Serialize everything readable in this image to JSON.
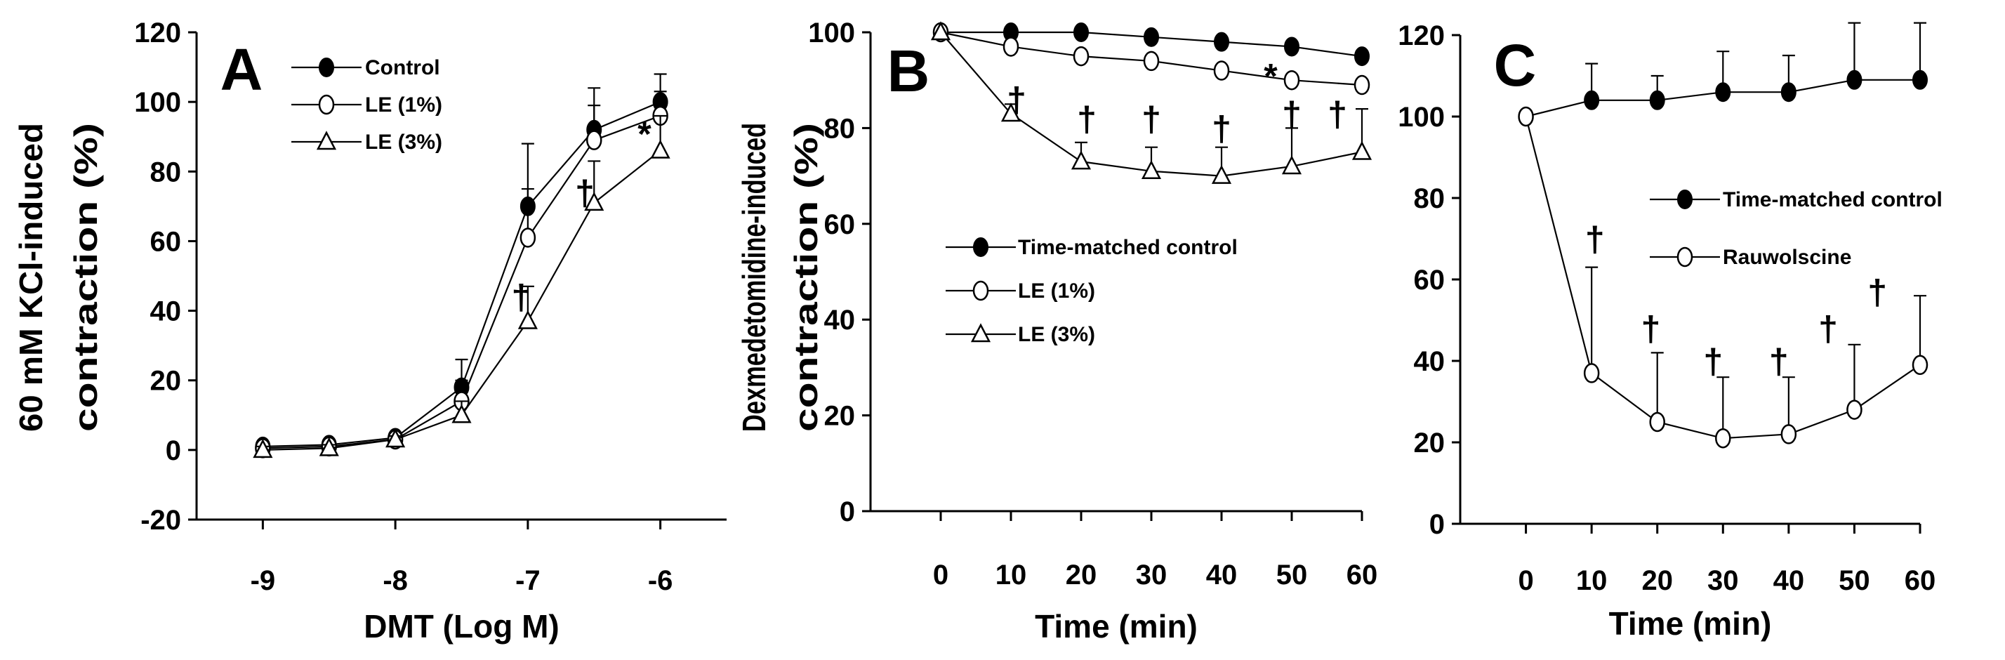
{
  "chart_data": [
    {
      "panel": "A",
      "type": "line",
      "ylabel": [
        "60 mM KCl-induced",
        "contraction (%)"
      ],
      "xlabel": "DMT (Log M)",
      "x": [
        -9,
        -8.5,
        -8,
        -7.5,
        -7,
        -6.5,
        -6
      ],
      "xticks": [
        -9,
        -8,
        -7,
        -6
      ],
      "xlim": [
        -9.5,
        -5.5
      ],
      "ylim": [
        -20,
        120
      ],
      "yticks": [
        -20,
        0,
        20,
        40,
        60,
        80,
        100,
        120
      ],
      "series": [
        {
          "name": "Control",
          "marker": "filled-circle",
          "values": [
            1,
            1.5,
            3.5,
            18,
            70,
            92,
            100
          ],
          "errors": [
            1,
            1,
            1,
            8,
            18,
            12,
            8
          ]
        },
        {
          "name": "LE (1%)",
          "marker": "open-circle",
          "values": [
            0.5,
            1,
            3,
            14,
            61,
            89,
            96
          ],
          "errors": [
            1,
            1,
            1,
            6,
            14,
            10,
            7
          ]
        },
        {
          "name": "LE (3%)",
          "marker": "open-triangle",
          "values": [
            0,
            0.5,
            3,
            10,
            37,
            71,
            86
          ],
          "errors": [
            1,
            1,
            1,
            4,
            10,
            12,
            10
          ]
        }
      ],
      "annotations": [
        {
          "text": "†",
          "x": -7.05,
          "y": 44
        },
        {
          "text": "†",
          "x": -6.57,
          "y": 74
        },
        {
          "text": "*",
          "x": -6.12,
          "y": 91
        }
      ]
    },
    {
      "panel": "B",
      "type": "line",
      "ylabel": [
        "Dexmedetomidine-induced",
        "contraction (%)"
      ],
      "xlabel": "Time (min)",
      "x": [
        0,
        10,
        20,
        30,
        40,
        50,
        60
      ],
      "xticks": [
        0,
        10,
        20,
        30,
        40,
        50,
        60
      ],
      "xlim": [
        -10,
        60
      ],
      "ylim": [
        0,
        100
      ],
      "yticks": [
        0,
        20,
        40,
        60,
        80,
        100
      ],
      "series": [
        {
          "name": "Time-matched control",
          "marker": "filled-circle",
          "values": [
            100,
            100,
            100,
            99,
            98,
            97,
            95
          ],
          "errors": [
            0,
            1,
            1,
            1,
            1,
            1,
            1
          ]
        },
        {
          "name": "LE (1%)",
          "marker": "open-circle",
          "values": [
            100,
            97,
            95,
            94,
            92,
            90,
            89
          ],
          "errors": [
            0,
            1,
            1,
            1,
            1,
            1,
            1
          ]
        },
        {
          "name": "LE (3%)",
          "marker": "open-triangle",
          "values": [
            100,
            83,
            73,
            71,
            70,
            72,
            75
          ],
          "errors": [
            0,
            2,
            4,
            5,
            6,
            8,
            9
          ]
        }
      ],
      "annotations": [
        {
          "text": "†",
          "x": 10.8,
          "y": 86
        },
        {
          "text": "†",
          "x": 20.8,
          "y": 82
        },
        {
          "text": "†",
          "x": 30,
          "y": 82
        },
        {
          "text": "†",
          "x": 40,
          "y": 80
        },
        {
          "text": "†",
          "x": 50,
          "y": 83
        },
        {
          "text": "†",
          "x": 56.5,
          "y": 83
        },
        {
          "text": "*",
          "x": 47,
          "y": 91
        }
      ]
    },
    {
      "panel": "C",
      "type": "line",
      "ylabel": [],
      "xlabel": "Time (min)",
      "x": [
        0,
        10,
        20,
        30,
        40,
        50,
        60
      ],
      "xticks": [
        0,
        10,
        20,
        30,
        40,
        50,
        60
      ],
      "xlim": [
        -10,
        60
      ],
      "ylim": [
        0,
        120
      ],
      "yticks": [
        0,
        20,
        40,
        60,
        80,
        100,
        120
      ],
      "series": [
        {
          "name": "Time-matched control",
          "marker": "filled-circle",
          "values": [
            100,
            104,
            104,
            106,
            106,
            109,
            109
          ],
          "errors": [
            0,
            9,
            6,
            10,
            9,
            14,
            14
          ]
        },
        {
          "name": "Rauwolscine",
          "marker": "open-circle",
          "values": [
            100,
            37,
            25,
            21,
            22,
            28,
            39
          ],
          "errors": [
            0,
            26,
            17,
            15,
            14,
            16,
            17
          ]
        }
      ],
      "annotations": [
        {
          "text": "†",
          "x": 10.5,
          "y": 70
        },
        {
          "text": "†",
          "x": 19,
          "y": 48
        },
        {
          "text": "†",
          "x": 28.5,
          "y": 40
        },
        {
          "text": "†",
          "x": 38.5,
          "y": 40
        },
        {
          "text": "†",
          "x": 46,
          "y": 48
        },
        {
          "text": "†",
          "x": 53.5,
          "y": 57
        }
      ]
    }
  ]
}
